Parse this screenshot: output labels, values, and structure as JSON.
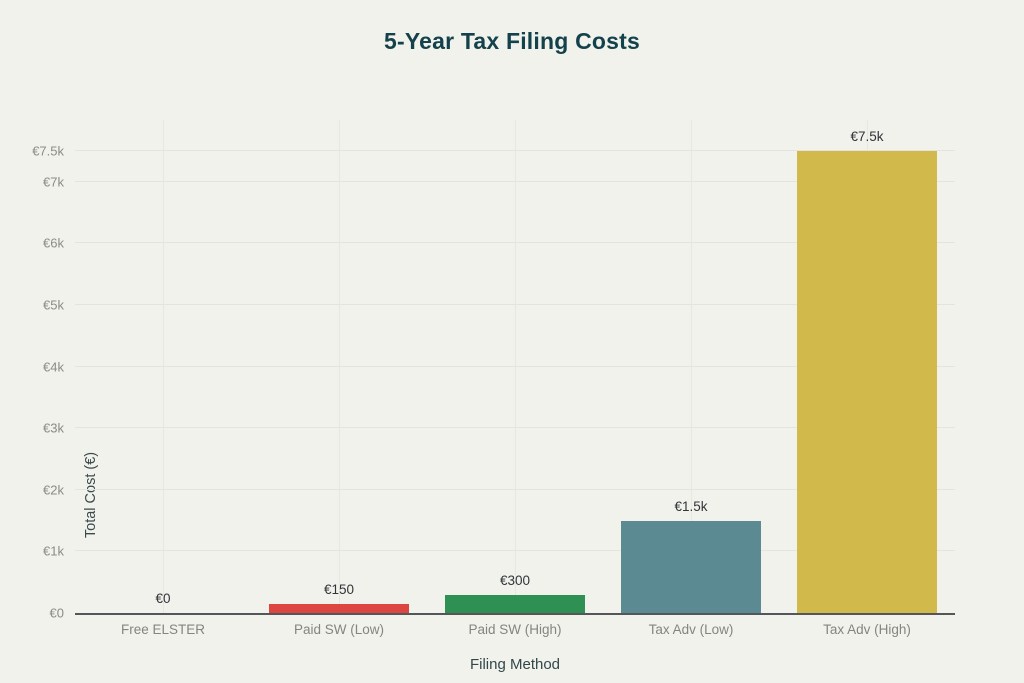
{
  "page": {
    "background_color": "#f2f2ec"
  },
  "header": {
    "title": "5-Year Tax Filing Costs",
    "title_color": "#14424c"
  },
  "chart_data": {
    "type": "bar",
    "title": "5-Year Tax Filing Costs",
    "xlabel": "Filing Method",
    "ylabel": "Total Cost (€)",
    "categories": [
      "Free ELSTER",
      "Paid SW (Low)",
      "Paid SW (High)",
      "Tax Adv (Low)",
      "Tax Adv (High)"
    ],
    "values": [
      0,
      150,
      300,
      1500,
      7500
    ],
    "value_labels": [
      "€0",
      "€150",
      "€300",
      "€1.5k",
      "€7.5k"
    ],
    "bar_colors": [
      null,
      "#dc4540",
      "#2e9153",
      "#5c8a92",
      "#d1b94c"
    ],
    "ytick_labels": [
      "€0",
      "€1k",
      "€2k",
      "€3k",
      "€4k",
      "€5k",
      "€6k",
      "€7k",
      "€7.5k"
    ],
    "ytick_values": [
      0,
      1000,
      2000,
      3000,
      4000,
      5000,
      6000,
      7000,
      7500
    ],
    "ylim": [
      0,
      8000
    ],
    "grid": true,
    "legend": null
  }
}
